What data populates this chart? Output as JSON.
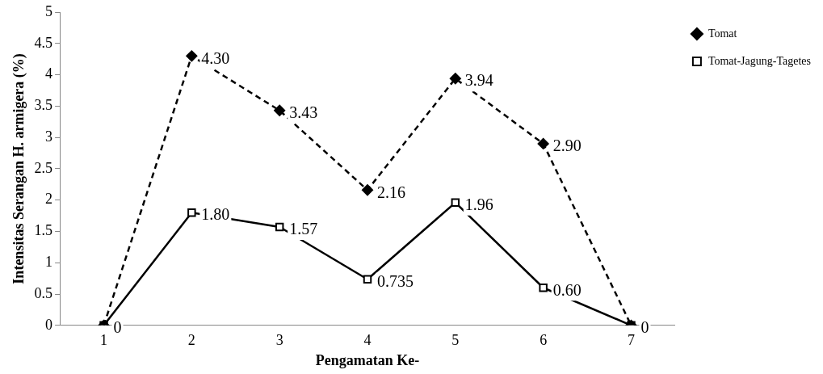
{
  "chart_data": {
    "type": "line",
    "xlabel": "Pengamatan Ke-",
    "ylabel": "Intensitas Serangan H. armigera (%)",
    "categories": [
      "1",
      "2",
      "3",
      "4",
      "5",
      "6",
      "7"
    ],
    "series": [
      {
        "name": "Tomat",
        "color": "#000000",
        "marker": "diamond",
        "line_style": "dashed",
        "values": [
          0,
          4.3,
          3.43,
          2.16,
          3.94,
          2.9,
          0
        ],
        "value_labels": [
          null,
          "4.30",
          "3.43",
          "2.16",
          "3.94",
          "2.90",
          "0"
        ]
      },
      {
        "name": "Tomat-Jagung-Tagetes",
        "color": "#000000",
        "marker": "square",
        "line_style": "solid",
        "values": [
          0,
          1.8,
          1.57,
          0.735,
          1.96,
          0.6,
          0
        ],
        "value_labels": [
          "0",
          "1.80",
          "1.57",
          "0.735",
          "1.96",
          "0.60",
          null
        ]
      }
    ],
    "ylim": [
      0,
      5
    ],
    "yticks": [
      0,
      0.5,
      1,
      1.5,
      2,
      2.5,
      3,
      3.5,
      4,
      4.5,
      5
    ],
    "grid": false,
    "legend": "top right"
  }
}
